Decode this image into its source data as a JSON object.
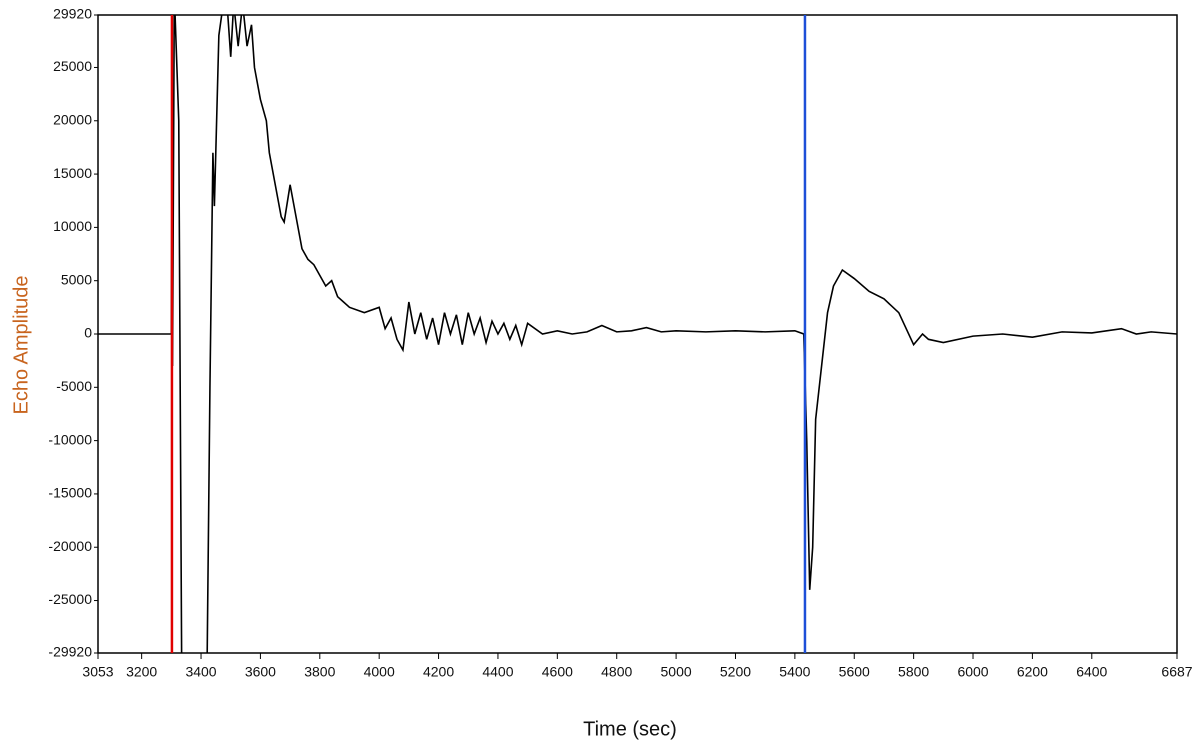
{
  "chart_data": {
    "type": "line",
    "xlabel": "Time (sec)",
    "ylabel": "Echo Amplitude",
    "xlim": [
      3053,
      6687
    ],
    "xticks": [
      3053,
      3200,
      3400,
      3600,
      3800,
      4000,
      4200,
      4400,
      4600,
      4800,
      5000,
      5200,
      5400,
      5600,
      5800,
      6000,
      6200,
      6400,
      6687
    ],
    "ylim": [
      -29920,
      29920
    ],
    "yticks": [
      29920,
      25000,
      20000,
      15000,
      10000,
      5000,
      0,
      -5000,
      -10000,
      -15000,
      -20000,
      -25000,
      -29920
    ],
    "grid": false,
    "x": [
      3053,
      3300,
      3302,
      3304,
      3310,
      3325,
      3335,
      3420,
      3430,
      3440,
      3445,
      3460,
      3475,
      3490,
      3500,
      3510,
      3525,
      3540,
      3555,
      3570,
      3580,
      3600,
      3620,
      3630,
      3650,
      3670,
      3680,
      3700,
      3720,
      3740,
      3760,
      3780,
      3800,
      3820,
      3840,
      3860,
      3880,
      3900,
      3950,
      4000,
      4020,
      4040,
      4060,
      4080,
      4100,
      4120,
      4140,
      4160,
      4180,
      4200,
      4220,
      4240,
      4260,
      4280,
      4300,
      4320,
      4340,
      4360,
      4380,
      4400,
      4420,
      4440,
      4460,
      4480,
      4500,
      4550,
      4600,
      4650,
      4700,
      4750,
      4800,
      4850,
      4900,
      4950,
      5000,
      5100,
      5200,
      5300,
      5400,
      5430,
      5440,
      5450,
      5460,
      5470,
      5490,
      5510,
      5530,
      5560,
      5600,
      5650,
      5700,
      5750,
      5800,
      5830,
      5850,
      5900,
      6000,
      6100,
      6200,
      6300,
      6400,
      6500,
      6550,
      6600,
      6687
    ],
    "series": [
      {
        "color": "#000000",
        "values": [
          0,
          0,
          14000,
          -3000,
          32000,
          20000,
          -32000,
          -32000,
          -5000,
          17000,
          12000,
          28000,
          31000,
          30000,
          26000,
          31000,
          27000,
          31000,
          27000,
          29000,
          25000,
          22000,
          20000,
          17000,
          14000,
          11000,
          10500,
          14000,
          11000,
          8000,
          7000,
          6500,
          5500,
          4500,
          5000,
          3500,
          3000,
          2500,
          2000,
          2500,
          500,
          1500,
          -500,
          -1500,
          3000,
          0,
          2000,
          -500,
          1500,
          -1000,
          2000,
          0,
          1800,
          -1000,
          2000,
          0,
          1500,
          -800,
          1200,
          0,
          1000,
          -500,
          800,
          -1000,
          1000,
          0,
          300,
          0,
          200,
          800,
          200,
          300,
          600,
          200,
          300,
          200,
          300,
          200,
          300,
          0,
          -10000,
          -24000,
          -20000,
          -8000,
          -3000,
          2000,
          4500,
          6000,
          5200,
          4000,
          3300,
          2000,
          -1000,
          0,
          -500,
          -800,
          -200,
          0,
          -300,
          200,
          100,
          500,
          0,
          200,
          0
        ]
      }
    ],
    "cursors": [
      {
        "x": 3302,
        "color": "#e00000"
      },
      {
        "x": 5434,
        "color": "#1d4fd8"
      }
    ]
  }
}
